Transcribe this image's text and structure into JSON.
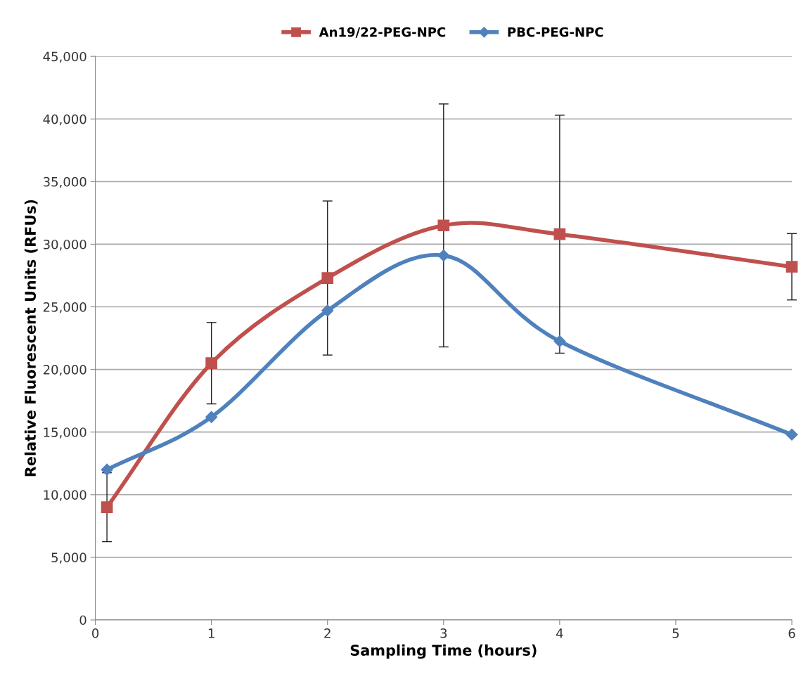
{
  "chart_data": {
    "type": "line",
    "xlabel": "Sampling Time (hours)",
    "ylabel": "Relative Fluorescent Units (RFUs)",
    "x": [
      0.1,
      1,
      2,
      3,
      4,
      6
    ],
    "series": [
      {
        "name": "An19/22-PEG-NPC",
        "color": "#c0504d",
        "marker": "square",
        "values": [
          9000,
          20500,
          27300,
          31500,
          30800,
          28200
        ],
        "errors": [
          2750,
          3250,
          6150,
          9700,
          9500,
          2650
        ]
      },
      {
        "name": "PBC-PEG-NPC",
        "color": "#4f81bd",
        "marker": "diamond",
        "values": [
          12000,
          16200,
          24700,
          29100,
          22250,
          14800
        ]
      }
    ],
    "xlim": [
      0,
      6
    ],
    "xticks": [
      0,
      1,
      2,
      3,
      4,
      5,
      6
    ],
    "ylim": [
      0,
      45000
    ],
    "yticks": [
      {
        "value": 0,
        "label": "0"
      },
      {
        "value": 5000,
        "label": "5,000"
      },
      {
        "value": 10000,
        "label": "10,000"
      },
      {
        "value": 15000,
        "label": "15,000"
      },
      {
        "value": 20000,
        "label": "20,000"
      },
      {
        "value": 25000,
        "label": "25,000"
      },
      {
        "value": 30000,
        "label": "30,000"
      },
      {
        "value": 35000,
        "label": "35,000"
      },
      {
        "value": 40000,
        "label": "40,000"
      },
      {
        "value": 45000,
        "label": "45,000"
      }
    ],
    "grid": "y",
    "legend": "top",
    "line_style": "solid"
  }
}
